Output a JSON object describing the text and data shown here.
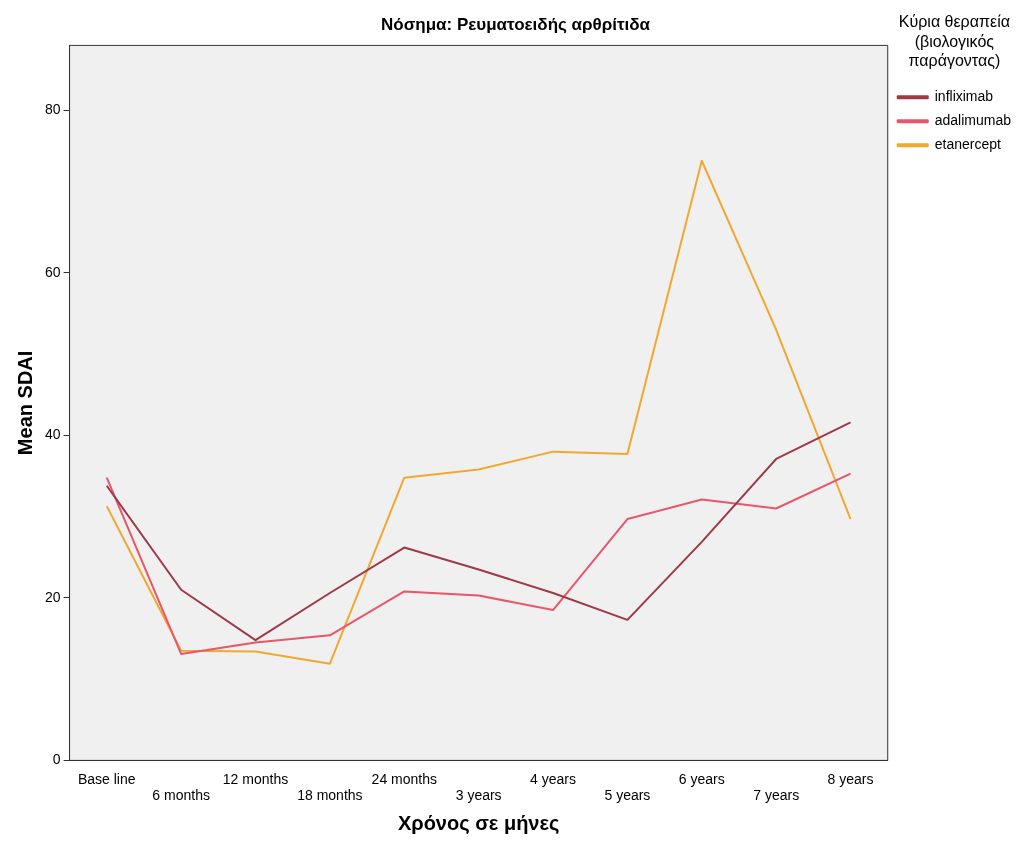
{
  "chart_data": {
    "type": "line",
    "title": "Νόσημα: Ρευματοειδής αρθρίτιδα",
    "xlabel": "Χρόνος σε μήνες",
    "ylabel": "Mean SDAI",
    "legend_title": "Κύρια θεραπεία (βιολογικός παράγοντας)",
    "categories": [
      "Base line",
      "6 months",
      "12 months",
      "18 months",
      "24 months",
      "3 years",
      "4 years",
      "5 years",
      "6 years",
      "7 years",
      "8 years"
    ],
    "series": [
      {
        "name": "infliximab",
        "color": "#9e3a48",
        "values": [
          33.8,
          21.0,
          14.8,
          20.6,
          26.2,
          23.5,
          20.6,
          17.3,
          26.9,
          37.1,
          41.6
        ]
      },
      {
        "name": "adalimumab",
        "color": "#e8566a",
        "values": [
          34.8,
          13.1,
          14.5,
          15.4,
          20.8,
          20.3,
          18.5,
          29.7,
          32.1,
          31.0,
          35.3
        ]
      },
      {
        "name": "etanercept",
        "color": "#f0a830",
        "values": [
          31.3,
          13.5,
          13.4,
          11.9,
          34.8,
          35.8,
          38.0,
          37.7,
          73.8,
          53.0,
          29.7
        ]
      }
    ],
    "ylim": [
      0,
      88
    ],
    "yticks": [
      0,
      20,
      40,
      60,
      80
    ],
    "grid": false,
    "legend": "right",
    "marker": "none",
    "line_style": "solid"
  }
}
